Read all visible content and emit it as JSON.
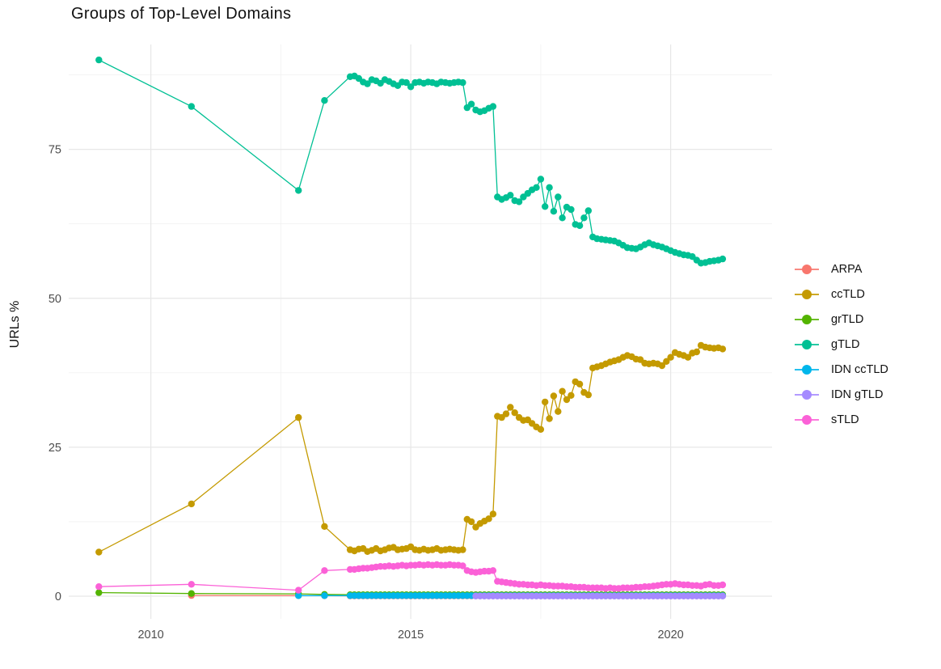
{
  "page": {
    "title": "Groups of Top-Level Domains"
  },
  "chart_data": {
    "type": "line",
    "title": "Groups of Top-Level Domains",
    "xlabel": "",
    "ylabel": "URLs %",
    "grid": true,
    "legend_position": "right",
    "xlim": [
      2008.42,
      2021.95
    ],
    "ylim": [
      -3.8,
      92.6
    ],
    "x_major_ticks": [
      2010,
      2015,
      2020
    ],
    "x_tick_labels": [
      "2010",
      "2015",
      "2020"
    ],
    "x_minor_ticks": [
      2012.5,
      2017.5
    ],
    "y_major_ticks": [
      0,
      25,
      50,
      75
    ],
    "y_tick_labels": [
      "0",
      "25",
      "50",
      "75"
    ],
    "y_minor_ticks": [
      12.5,
      37.5,
      62.5,
      87.5
    ],
    "point_radius": 4.2,
    "line_width": 1.3,
    "colors": {
      "major_grid": "#e7e7e7",
      "minor_grid": "#f2f2f2",
      "tick_label": "#4d4d4d",
      "title_text": "#111111"
    },
    "series": [
      {
        "name": "ARPA",
        "color": "#F8766D",
        "points": [
          [
            2010.78,
            0.12
          ],
          [
            2012.84,
            0.1
          ],
          [
            2013.34,
            0.08
          ]
        ],
        "flat": {
          "from": 2013.8333,
          "to": 2021.0,
          "value": 0.06
        }
      },
      {
        "name": "ccTLD",
        "color": "#C49A00",
        "points": [
          [
            2009.0,
            7.4
          ],
          [
            2010.78,
            15.5
          ],
          [
            2012.84,
            30.0
          ],
          [
            2013.34,
            11.7
          ]
        ],
        "monthly": {
          "from": 2013.8333,
          "values": [
            7.8,
            7.6,
            7.9,
            8.0,
            7.5,
            7.7,
            8.0,
            7.6,
            7.8,
            8.1,
            8.2,
            7.8,
            7.9,
            8.0,
            8.3,
            7.8,
            7.7,
            7.9,
            7.7,
            7.8,
            8.0,
            7.7,
            7.8,
            7.9,
            7.8,
            7.7,
            7.8,
            12.9,
            12.5,
            11.6,
            12.2,
            12.6,
            13.0,
            13.8,
            30.2,
            30.0,
            30.6,
            31.7,
            30.8,
            30.0,
            29.5,
            29.6,
            29.0,
            28.4,
            28.0,
            32.6,
            29.8,
            33.6,
            31.0,
            34.4,
            33.0,
            33.7,
            36.0,
            35.6,
            34.2,
            33.8,
            38.3,
            38.5,
            38.7,
            39.0,
            39.3,
            39.5,
            39.7,
            40.1,
            40.4,
            40.2,
            39.8,
            39.7,
            39.1,
            39.0,
            39.1,
            39.0,
            38.7,
            39.4,
            40.1,
            40.9,
            40.6,
            40.4,
            40.1,
            40.8,
            41.0,
            42.1,
            41.8,
            41.7,
            41.6,
            41.7,
            41.5
          ]
        }
      },
      {
        "name": "grTLD",
        "color": "#53B400",
        "points": [
          [
            2009.0,
            0.6
          ],
          [
            2010.78,
            0.45
          ],
          [
            2012.84,
            0.4
          ],
          [
            2013.34,
            0.3
          ]
        ],
        "flat": {
          "from": 2013.8333,
          "to": 2021.0,
          "value": 0.25
        }
      },
      {
        "name": "gTLD",
        "color": "#00C094",
        "points": [
          [
            2009.0,
            90.0
          ],
          [
            2010.78,
            82.2
          ],
          [
            2012.84,
            68.1
          ],
          [
            2013.34,
            83.2
          ]
        ],
        "monthly": {
          "from": 2013.8333,
          "values": [
            87.2,
            87.3,
            86.9,
            86.3,
            86.0,
            86.7,
            86.5,
            86.1,
            86.7,
            86.4,
            86.0,
            85.7,
            86.3,
            86.2,
            85.5,
            86.2,
            86.3,
            86.1,
            86.3,
            86.2,
            86.0,
            86.3,
            86.2,
            86.1,
            86.2,
            86.3,
            86.2,
            82.0,
            82.6,
            81.6,
            81.3,
            81.5,
            81.9,
            82.2,
            67.0,
            66.6,
            66.9,
            67.3,
            66.4,
            66.2,
            67.0,
            67.6,
            68.2,
            68.6,
            70.0,
            65.4,
            68.6,
            64.6,
            67.0,
            63.5,
            65.3,
            64.9,
            62.4,
            62.2,
            63.5,
            64.7,
            60.3,
            60.0,
            59.9,
            59.8,
            59.7,
            59.6,
            59.3,
            58.9,
            58.5,
            58.4,
            58.3,
            58.6,
            59.0,
            59.3,
            59.0,
            58.8,
            58.6,
            58.3,
            58.0,
            57.7,
            57.5,
            57.3,
            57.2,
            57.0,
            56.4,
            55.9,
            56.0,
            56.2,
            56.3,
            56.4,
            56.6
          ]
        }
      },
      {
        "name": "IDN ccTLD",
        "color": "#00B6EB",
        "points": [
          [
            2012.84,
            0.1
          ],
          [
            2013.34,
            0.1
          ]
        ],
        "flat": {
          "from": 2013.8333,
          "to": 2021.0,
          "value": 0.1
        }
      },
      {
        "name": "IDN gTLD",
        "color": "#A58AFF",
        "points": [],
        "flat": {
          "from": 2016.25,
          "to": 2021.0,
          "value": 0.03
        }
      },
      {
        "name": "sTLD",
        "color": "#FB61D7",
        "points": [
          [
            2009.0,
            1.6
          ],
          [
            2010.78,
            2.0
          ],
          [
            2012.84,
            1.0
          ],
          [
            2013.34,
            4.3
          ]
        ],
        "monthly": {
          "from": 2013.8333,
          "values": [
            4.5,
            4.5,
            4.6,
            4.7,
            4.7,
            4.8,
            4.9,
            5.0,
            5.0,
            5.1,
            5.0,
            5.1,
            5.2,
            5.1,
            5.2,
            5.2,
            5.3,
            5.2,
            5.3,
            5.2,
            5.3,
            5.2,
            5.2,
            5.3,
            5.2,
            5.2,
            5.1,
            4.3,
            4.1,
            4.0,
            4.1,
            4.2,
            4.2,
            4.3,
            2.5,
            2.4,
            2.3,
            2.2,
            2.1,
            2.0,
            2.0,
            1.9,
            1.9,
            1.8,
            1.9,
            1.8,
            1.8,
            1.7,
            1.7,
            1.7,
            1.6,
            1.6,
            1.5,
            1.5,
            1.5,
            1.4,
            1.4,
            1.4,
            1.4,
            1.3,
            1.4,
            1.3,
            1.3,
            1.4,
            1.4,
            1.4,
            1.5,
            1.5,
            1.6,
            1.6,
            1.7,
            1.8,
            1.9,
            2.0,
            2.0,
            2.1,
            2.0,
            1.9,
            1.9,
            1.8,
            1.8,
            1.7,
            1.9,
            2.0,
            1.8,
            1.8,
            1.9
          ]
        }
      }
    ]
  }
}
